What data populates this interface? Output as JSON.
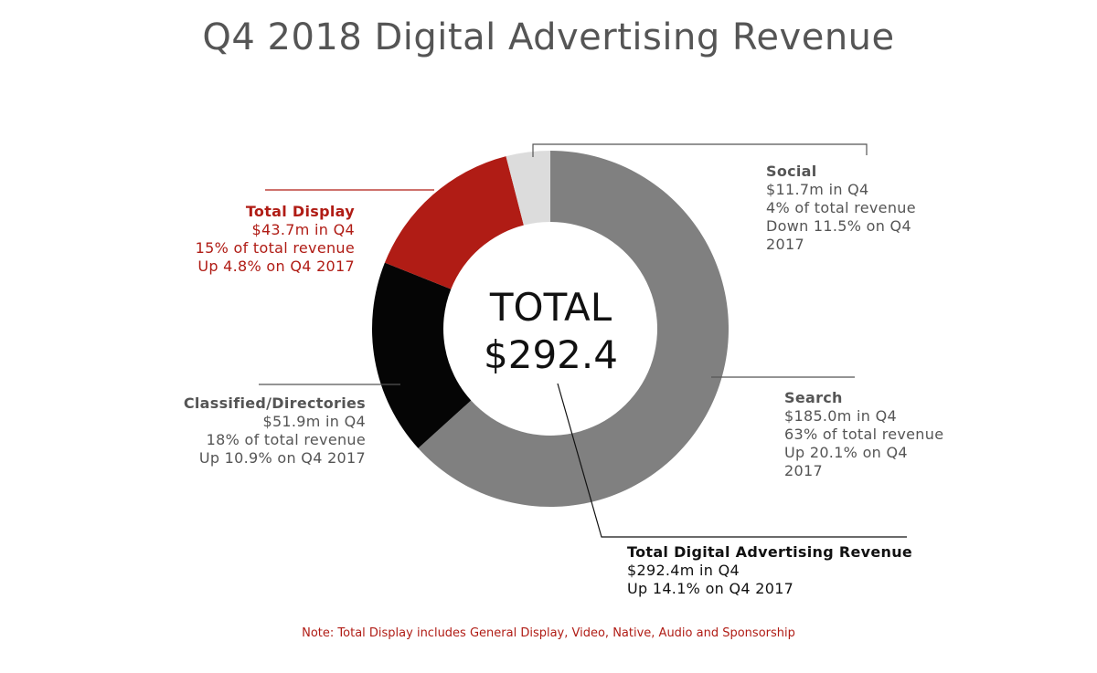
{
  "chart_data": {
    "type": "pie",
    "title": "Q4 2018 Digital Advertising Revenue",
    "center_label": {
      "line1": "TOTAL",
      "line2": "$292.4"
    },
    "unit": "$m",
    "slices": [
      {
        "key": "search",
        "name": "Search",
        "value": 185.0,
        "color": "#808080",
        "lines": [
          "$185.0m in Q4",
          "63% of total revenue",
          "Up 20.1% on Q4",
          "2017"
        ]
      },
      {
        "key": "classified",
        "name": "Classified/Directories",
        "value": 51.9,
        "color": "#050505",
        "lines": [
          "$51.9m in Q4",
          "18% of total revenue",
          "Up 10.9% on Q4 2017"
        ]
      },
      {
        "key": "display",
        "name": "Total Display",
        "value": 43.7,
        "color": "#b01c15",
        "lines": [
          "$43.7m in Q4",
          "15% of total revenue",
          "Up 4.8% on Q4 2017"
        ]
      },
      {
        "key": "social",
        "name": "Social",
        "value": 11.7,
        "color": "#dcdcdc",
        "lines": [
          "$11.7m in Q4",
          "4% of total revenue",
          "Down 11.5% on Q4",
          "2017"
        ]
      }
    ],
    "total": {
      "name": "Total Digital Advertising Revenue",
      "lines": [
        "$292.4m in Q4",
        "Up 14.1% on Q4 2017"
      ]
    },
    "note": "Note: Total Display includes General Display, Video, Native, Audio and Sponsorship"
  }
}
